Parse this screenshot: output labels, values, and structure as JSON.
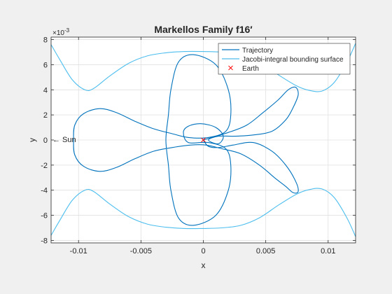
{
  "chart_data": {
    "type": "line",
    "title": "Markellos Family f16′",
    "xlabel": "x",
    "ylabel": "y",
    "exponent_label": "×10",
    "exponent_power": "-3",
    "xlim": [
      -0.0122,
      0.0122
    ],
    "ylim": [
      -8.2,
      8.2
    ],
    "y_scale": 0.001,
    "x_ticks": [
      -0.01,
      -0.005,
      0,
      0.005,
      0.01
    ],
    "x_tick_labels": [
      "-0.01",
      "-0.005",
      "0",
      "0.005",
      "0.01"
    ],
    "y_ticks": [
      -8,
      -6,
      -4,
      -2,
      0,
      2,
      4,
      6,
      8
    ],
    "y_tick_labels": [
      "-8",
      "-6",
      "-4",
      "-2",
      "0",
      "2",
      "4",
      "6",
      "8"
    ],
    "grid": true,
    "legend_position": "top-right",
    "annotation": {
      "text": "← Sun",
      "x": -0.0122,
      "y": 0
    },
    "colors": {
      "trajectory": "#0072BD",
      "surface": "#4DBEEE",
      "earth": "#FF0000"
    },
    "series": [
      {
        "name": "Trajectory",
        "role": "trajectory",
        "points": [
          [
            0.0,
            0.0
          ],
          [
            0.0004,
            -0.5
          ],
          [
            0.0012,
            -0.6
          ],
          [
            0.0024,
            -0.4
          ],
          [
            0.004,
            -0.2
          ],
          [
            0.0055,
            -0.9
          ],
          [
            0.0066,
            -2.0
          ],
          [
            0.0074,
            -3.3
          ],
          [
            0.0076,
            -4.1
          ],
          [
            0.0072,
            -4.2
          ],
          [
            0.0066,
            -3.7
          ],
          [
            0.0057,
            -3.0
          ],
          [
            0.0045,
            -2.0
          ],
          [
            0.003,
            -1.1
          ],
          [
            0.0015,
            -0.7
          ],
          [
            0.0002,
            -0.4
          ],
          [
            -0.001,
            -0.4
          ],
          [
            -0.0025,
            -0.6
          ],
          [
            -0.004,
            -0.9
          ],
          [
            -0.0055,
            -1.5
          ],
          [
            -0.007,
            -2.2
          ],
          [
            -0.0083,
            -2.5
          ],
          [
            -0.0096,
            -2.1
          ],
          [
            -0.0103,
            -1.2
          ],
          [
            -0.0104,
            0.0
          ],
          [
            -0.0103,
            1.2
          ],
          [
            -0.0096,
            2.1
          ],
          [
            -0.0083,
            2.5
          ],
          [
            -0.007,
            2.2
          ],
          [
            -0.0055,
            1.5
          ],
          [
            -0.004,
            0.9
          ],
          [
            -0.0025,
            0.5
          ],
          [
            -0.0012,
            0.2
          ],
          [
            0.0004,
            0.2
          ],
          [
            0.0018,
            0.7
          ],
          [
            0.0022,
            2.0
          ],
          [
            0.002,
            4.0
          ],
          [
            0.001,
            6.0
          ],
          [
            -0.0008,
            6.8
          ],
          [
            -0.002,
            6.2
          ],
          [
            -0.0026,
            4.0
          ],
          [
            -0.0028,
            2.0
          ],
          [
            -0.003,
            0.0
          ],
          [
            -0.0028,
            -2.0
          ],
          [
            -0.0026,
            -4.0
          ],
          [
            -0.002,
            -6.2
          ],
          [
            -0.0008,
            -6.8
          ],
          [
            0.001,
            -6.0
          ],
          [
            0.002,
            -4.0
          ],
          [
            0.0022,
            -2.0
          ],
          [
            0.0018,
            -0.7
          ],
          [
            0.0004,
            -0.2
          ],
          [
            -0.0012,
            -0.2
          ],
          [
            -0.0016,
            0.6
          ],
          [
            -0.0012,
            1.1
          ],
          [
            -0.0002,
            1.3
          ],
          [
            0.001,
            1.0
          ],
          [
            0.0016,
            0.3
          ],
          [
            0.0012,
            -0.3
          ],
          [
            0.0004,
            0.0
          ],
          [
            0.0012,
            0.3
          ],
          [
            0.0025,
            0.3
          ],
          [
            0.004,
            0.4
          ],
          [
            0.0055,
            0.7
          ],
          [
            0.0066,
            1.6
          ],
          [
            0.0072,
            2.6
          ],
          [
            0.0076,
            3.6
          ],
          [
            0.0074,
            4.2
          ],
          [
            0.0068,
            4.0
          ],
          [
            0.006,
            3.2
          ],
          [
            0.0048,
            2.2
          ],
          [
            0.0035,
            1.2
          ],
          [
            0.002,
            0.6
          ],
          [
            0.0,
            0.0
          ]
        ]
      },
      {
        "name": "Jacobi-integral bounding surface",
        "role": "surface",
        "points": [
          [
            -0.0122,
            7.6
          ],
          [
            -0.0115,
            6.4
          ],
          [
            -0.0105,
            4.8
          ],
          [
            -0.0095,
            4.0
          ],
          [
            -0.0088,
            4.1
          ],
          [
            -0.0075,
            5.1
          ],
          [
            -0.006,
            6.1
          ],
          [
            -0.0045,
            6.7
          ],
          [
            -0.003,
            6.95
          ],
          [
            -0.0015,
            7.05
          ],
          [
            0.0,
            7.05
          ],
          [
            0.0015,
            7.0
          ],
          [
            0.003,
            6.8
          ],
          [
            0.0045,
            6.2
          ],
          [
            0.006,
            5.2
          ],
          [
            0.0075,
            4.3
          ],
          [
            0.0085,
            3.95
          ],
          [
            0.0095,
            3.9
          ],
          [
            0.0105,
            4.6
          ],
          [
            0.0115,
            6.2
          ],
          [
            0.0122,
            7.7
          ]
        ]
      },
      {
        "name": "",
        "role": "surface",
        "points": [
          [
            -0.0122,
            -7.6
          ],
          [
            -0.0115,
            -6.4
          ],
          [
            -0.0105,
            -4.8
          ],
          [
            -0.0095,
            -4.0
          ],
          [
            -0.0088,
            -4.1
          ],
          [
            -0.0075,
            -5.1
          ],
          [
            -0.006,
            -6.1
          ],
          [
            -0.0045,
            -6.7
          ],
          [
            -0.003,
            -6.95
          ],
          [
            -0.0015,
            -7.05
          ],
          [
            0.0,
            -7.05
          ],
          [
            0.0015,
            -7.0
          ],
          [
            0.003,
            -6.8
          ],
          [
            0.0045,
            -6.2
          ],
          [
            0.006,
            -5.2
          ],
          [
            0.0075,
            -4.3
          ],
          [
            0.0085,
            -3.95
          ],
          [
            0.0095,
            -3.9
          ],
          [
            0.0105,
            -4.6
          ],
          [
            0.0115,
            -6.2
          ],
          [
            0.0122,
            -7.7
          ]
        ]
      },
      {
        "name": "Earth",
        "role": "earth",
        "marker": "x",
        "points": [
          [
            0,
            0
          ]
        ]
      }
    ]
  }
}
